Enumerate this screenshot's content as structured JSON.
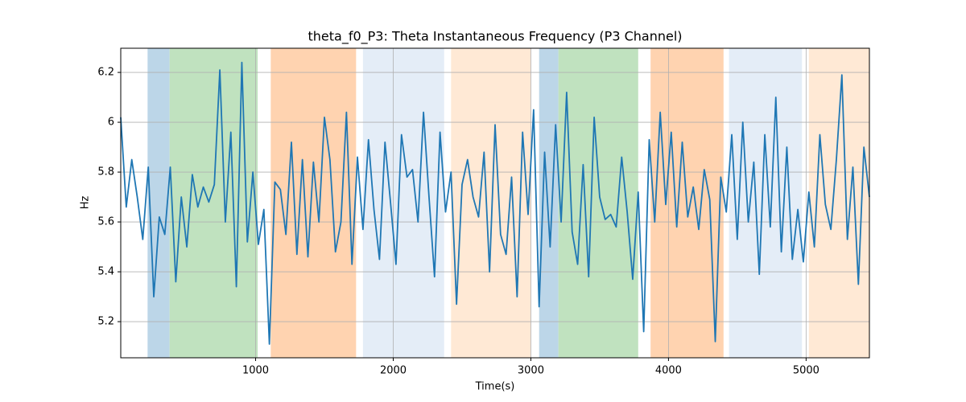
{
  "chart_data": {
    "type": "line",
    "title": "theta_f0_P3: Theta Instantaneous Frequency (P3 Channel)",
    "x_label": "Time(s)",
    "y_label": "Hz",
    "xlim": [
      20,
      5460
    ],
    "ylim": [
      5.055,
      6.297
    ],
    "xticks": [
      1000,
      2000,
      3000,
      4000,
      5000
    ],
    "yticks": [
      5.2,
      5.4,
      5.6,
      5.8,
      6.0,
      6.2
    ],
    "grid": true,
    "spans": [
      {
        "start": 215,
        "end": 375,
        "color": "#bcd6e8"
      },
      {
        "start": 375,
        "end": 1015,
        "color": "#c0e2bf"
      },
      {
        "start": 1110,
        "end": 1730,
        "color": "#ffd3b0"
      },
      {
        "start": 1780,
        "end": 2370,
        "color": "#e4edf7"
      },
      {
        "start": 2420,
        "end": 3000,
        "color": "#ffe9d5"
      },
      {
        "start": 3060,
        "end": 3200,
        "color": "#bcd6e8"
      },
      {
        "start": 3200,
        "end": 3780,
        "color": "#c0e2bf"
      },
      {
        "start": 3870,
        "end": 4400,
        "color": "#ffd3b0"
      },
      {
        "start": 4440,
        "end": 4970,
        "color": "#e4edf7"
      },
      {
        "start": 5020,
        "end": 5460,
        "color": "#ffe9d5"
      }
    ],
    "x": [
      20,
      60,
      100,
      140,
      180,
      220,
      260,
      300,
      340,
      380,
      420,
      460,
      500,
      540,
      580,
      620,
      660,
      700,
      740,
      780,
      820,
      860,
      900,
      940,
      980,
      1020,
      1060,
      1100,
      1140,
      1180,
      1220,
      1260,
      1300,
      1340,
      1380,
      1420,
      1460,
      1500,
      1540,
      1580,
      1620,
      1660,
      1700,
      1740,
      1780,
      1820,
      1860,
      1900,
      1940,
      1980,
      2020,
      2060,
      2100,
      2140,
      2180,
      2220,
      2260,
      2300,
      2340,
      2380,
      2420,
      2460,
      2500,
      2540,
      2580,
      2620,
      2660,
      2700,
      2740,
      2780,
      2820,
      2860,
      2900,
      2940,
      2980,
      3020,
      3060,
      3100,
      3140,
      3180,
      3220,
      3260,
      3300,
      3340,
      3380,
      3420,
      3460,
      3500,
      3540,
      3580,
      3620,
      3660,
      3700,
      3740,
      3780,
      3820,
      3860,
      3900,
      3940,
      3980,
      4020,
      4060,
      4100,
      4140,
      4180,
      4220,
      4260,
      4300,
      4340,
      4380,
      4420,
      4460,
      4500,
      4540,
      4580,
      4620,
      4660,
      4700,
      4740,
      4780,
      4820,
      4860,
      4900,
      4940,
      4980,
      5020,
      5060,
      5100,
      5140,
      5180,
      5220,
      5260,
      5300,
      5340,
      5380,
      5420,
      5460
    ],
    "series": [
      {
        "name": "theta_f0_P3",
        "color": "#1f77b4",
        "values": [
          6.02,
          5.66,
          5.85,
          5.7,
          5.53,
          5.82,
          5.3,
          5.62,
          5.55,
          5.82,
          5.36,
          5.7,
          5.5,
          5.79,
          5.66,
          5.74,
          5.68,
          5.75,
          6.21,
          5.6,
          5.96,
          5.34,
          6.24,
          5.52,
          5.8,
          5.51,
          5.65,
          5.11,
          5.76,
          5.73,
          5.55,
          5.92,
          5.47,
          5.85,
          5.46,
          5.84,
          5.6,
          6.02,
          5.85,
          5.48,
          5.6,
          6.04,
          5.43,
          5.86,
          5.57,
          5.93,
          5.65,
          5.45,
          5.92,
          5.68,
          5.43,
          5.95,
          5.78,
          5.81,
          5.6,
          6.04,
          5.7,
          5.38,
          5.96,
          5.64,
          5.8,
          5.27,
          5.75,
          5.85,
          5.7,
          5.62,
          5.88,
          5.4,
          5.99,
          5.55,
          5.47,
          5.78,
          5.3,
          5.96,
          5.63,
          6.05,
          5.26,
          5.88,
          5.5,
          5.99,
          5.6,
          6.12,
          5.56,
          5.43,
          5.83,
          5.38,
          6.02,
          5.7,
          5.61,
          5.63,
          5.58,
          5.86,
          5.64,
          5.37,
          5.72,
          5.16,
          5.93,
          5.6,
          6.04,
          5.67,
          5.96,
          5.58,
          5.92,
          5.62,
          5.74,
          5.57,
          5.81,
          5.69,
          5.12,
          5.78,
          5.64,
          5.95,
          5.53,
          6.0,
          5.6,
          5.84,
          5.39,
          5.95,
          5.58,
          6.1,
          5.48,
          5.9,
          5.45,
          5.65,
          5.44,
          5.72,
          5.5,
          5.95,
          5.67,
          5.57,
          5.85,
          6.19,
          5.53,
          5.82,
          5.35,
          5.9,
          5.7
        ]
      }
    ]
  }
}
